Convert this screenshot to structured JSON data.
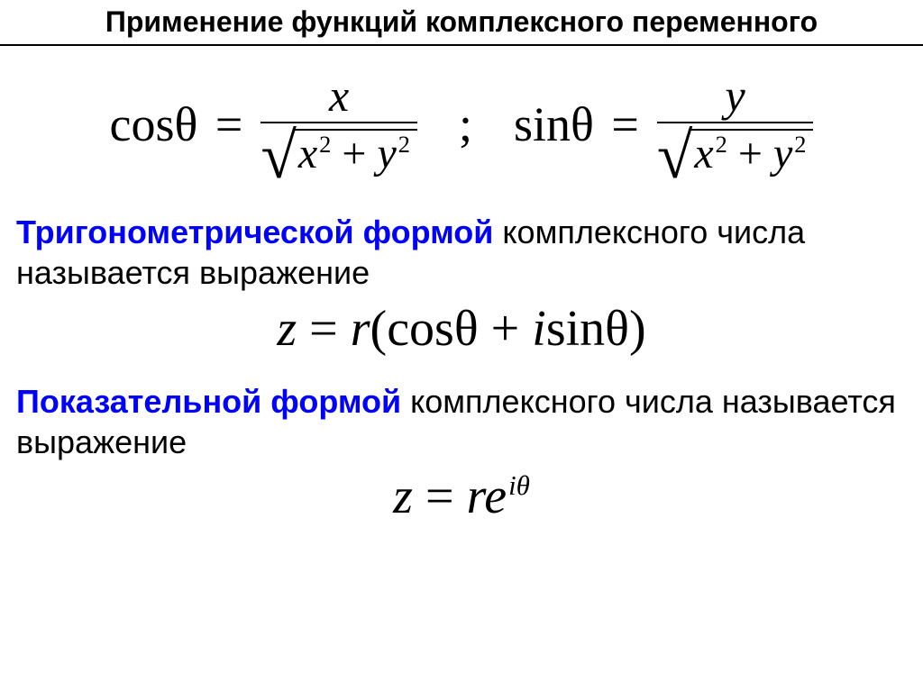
{
  "title": "Применение функций комплексного переменного",
  "colors": {
    "keyword": "#0000ff",
    "text": "#000000",
    "background": "#ffffff",
    "rule": "#000000"
  },
  "fonts": {
    "title_family": "Arial",
    "title_size_pt": 24,
    "title_weight": "bold",
    "body_family": "Arial",
    "body_size_pt": 27,
    "math_family": "Times New Roman",
    "math_size_pt": 40
  },
  "eq1": {
    "left": {
      "func": "cosθ",
      "eq": "=",
      "numerator": "x",
      "radicand": "x² + y²"
    },
    "separator": ";",
    "right": {
      "func": "sinθ",
      "eq": "=",
      "numerator": "y",
      "radicand": "x² + y²"
    }
  },
  "para1": {
    "keyword": "Тригонометрической формой",
    "rest": " комплексного числа называется выражение"
  },
  "eq2": {
    "text_z": "z",
    "text_eq": " = ",
    "text_r": "r",
    "text_open": "(cosθ + ",
    "text_i": "i",
    "text_sin": "sinθ)"
  },
  "para2": {
    "keyword": "Показательной формой",
    "rest": " комплексного числа называется выражение"
  },
  "eq3": {
    "z": "z",
    "eq": " = ",
    "r": "r",
    "e": "e",
    "exp": "iθ"
  }
}
